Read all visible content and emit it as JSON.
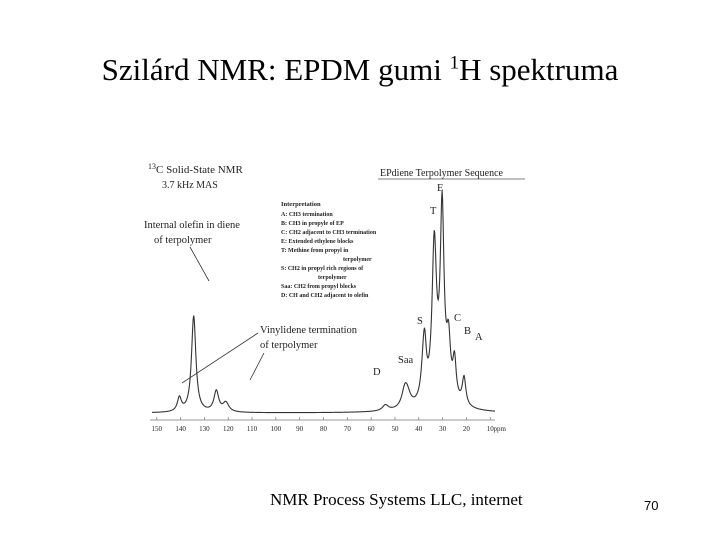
{
  "slide": {
    "title_before": "Szilárd NMR: EPDM gumi ",
    "title_sup": "1",
    "title_after": "H spektruma",
    "credit": "NMR Process Systems LLC, internet",
    "page_number": "70"
  },
  "chart_data": {
    "type": "line",
    "title": "C Solid-State NMR",
    "title_sup": "13",
    "subtitle": "3.7 kHz MAS",
    "sequence_label": "EPdiene Terpolymer Sequence",
    "xlabel": "ppm",
    "x_ticks": [
      "150",
      "140",
      "130",
      "120",
      "110",
      "100",
      "90",
      "80",
      "70",
      "60",
      "50",
      "40",
      "30",
      "20",
      "10"
    ],
    "x_tick_values": [
      150,
      140,
      130,
      120,
      110,
      100,
      90,
      80,
      70,
      60,
      50,
      40,
      30,
      20,
      10
    ],
    "xlim": [
      152,
      8
    ],
    "ylim": [
      0,
      1
    ],
    "grid": false,
    "peaks": [
      {
        "x": 140.5,
        "h": 0.06,
        "w": 1.0
      },
      {
        "x": 134.5,
        "h": 0.42,
        "w": 1.1
      },
      {
        "x": 125,
        "h": 0.09,
        "w": 1.2
      },
      {
        "x": 121,
        "h": 0.04,
        "w": 1.5
      },
      {
        "x": 54,
        "h": 0.025,
        "w": 1.5
      },
      {
        "x": 46,
        "h": 0.05,
        "w": 1.4
      },
      {
        "x": 45,
        "h": 0.07,
        "w": 1.8
      },
      {
        "x": 38,
        "h": 0.16,
        "w": 1.2
      },
      {
        "x": 37.5,
        "h": 0.14,
        "w": 0.8
      },
      {
        "x": 33.5,
        "h": 0.65,
        "w": 1.1
      },
      {
        "x": 30.2,
        "h": 0.75,
        "w": 0.9
      },
      {
        "x": 30,
        "h": 0.12,
        "w": 4.0
      },
      {
        "x": 27.5,
        "h": 0.2,
        "w": 0.9
      },
      {
        "x": 25,
        "h": 0.16,
        "w": 0.8
      },
      {
        "x": 21,
        "h": 0.12,
        "w": 0.9
      }
    ],
    "interpretation": {
      "heading": "Interpretation",
      "lines": [
        "A: CH3 termination",
        "B: CH3 in propyle of EP",
        "C: CH2 adjacent to CH3 termination",
        "E: Extended ethylene blocks",
        "T: Methine from propyl in",
        "terpolymer",
        "S: CH2 in propyl rich regions of",
        "terpolymer",
        "Saa: CH2 from propyl blocks",
        "D: CH and CH2 adjacent to olefin"
      ]
    },
    "annotations": [
      {
        "text": "Internal olefin in diene",
        "text2": "of terpolymer"
      },
      {
        "text": "Vinylidene termination",
        "text2": "of terpolymer"
      }
    ],
    "peak_labels": [
      "E",
      "T",
      "S",
      "C",
      "B",
      "A",
      "Saa",
      "D"
    ]
  }
}
